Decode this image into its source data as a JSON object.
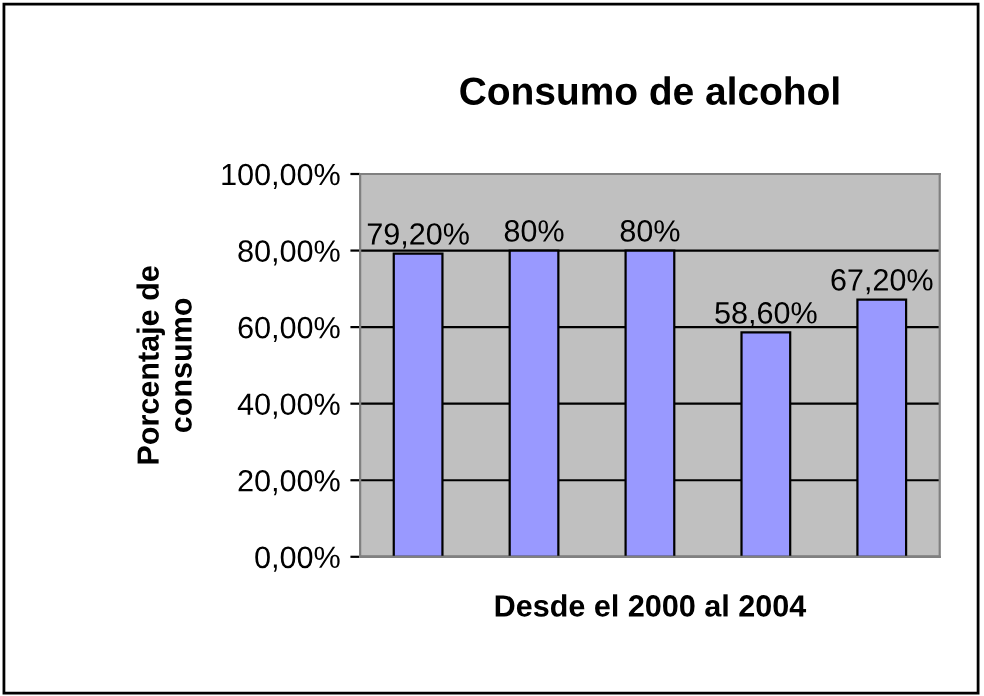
{
  "chart_data": {
    "type": "bar",
    "title": "Consumo de alcohol",
    "xlabel": "Desde el 2000 al 2004",
    "ylabel": "Porcentaje de\nconsumo",
    "categories": [
      null,
      null,
      null,
      null,
      null
    ],
    "values": [
      79.2,
      80,
      80,
      58.6,
      67.2
    ],
    "value_labels": [
      "79,20%",
      "80%",
      "80%",
      "58,60%",
      "67,20%"
    ],
    "color": "#9999ff",
    "ylim": [
      0,
      100
    ],
    "yticks": [
      {
        "value": 0,
        "label": "0,00%"
      },
      {
        "value": 20,
        "label": "20,00%"
      },
      {
        "value": 40,
        "label": "40,00%"
      },
      {
        "value": 60,
        "label": "60,00%"
      },
      {
        "value": 80,
        "label": "80,00%"
      },
      {
        "value": 100,
        "label": "100,00%"
      }
    ],
    "grid": "y"
  }
}
